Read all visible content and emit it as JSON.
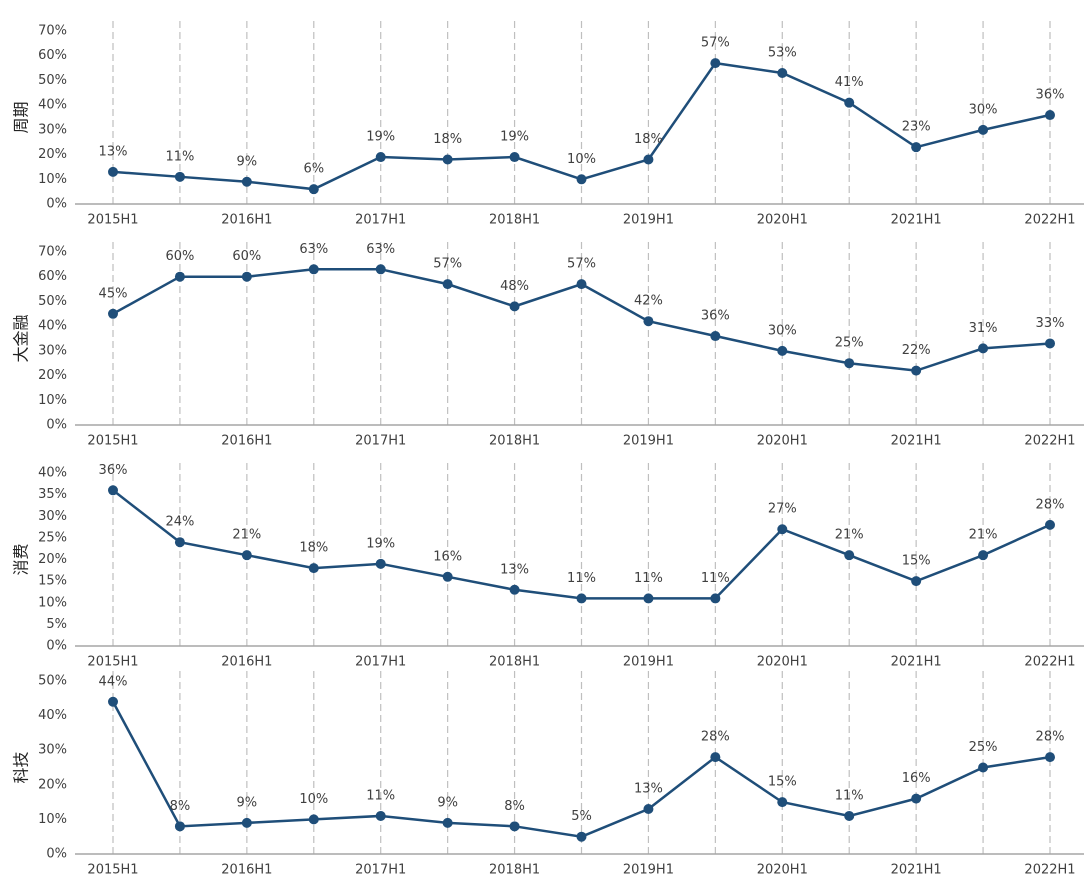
{
  "chart_data": [
    {
      "type": "line",
      "ylabel": "周期",
      "color": "#1f4e79",
      "xgrid": true,
      "categories": [
        "2015H1",
        null,
        "2016H1",
        null,
        "2017H1",
        null,
        "2018H1",
        null,
        "2019H1",
        null,
        "2020H1",
        null,
        "2021H1",
        null,
        "2022H1"
      ],
      "values": [
        13,
        11,
        9,
        6,
        19,
        18,
        19,
        10,
        18,
        57,
        53,
        41,
        23,
        30,
        36
      ],
      "value_labels": [
        "13%",
        "11%",
        "9%",
        "6%",
        "19%",
        "18%",
        "19%",
        "10%",
        "18%",
        "57%",
        "53%",
        "41%",
        "23%",
        "30%",
        "36%"
      ],
      "ylim": [
        0,
        70
      ],
      "yticks": [
        {
          "value": 0,
          "label": "0%"
        },
        {
          "value": 10,
          "label": "10%"
        },
        {
          "value": 20,
          "label": "20%"
        },
        {
          "value": 30,
          "label": "30%"
        },
        {
          "value": 40,
          "label": "40%"
        },
        {
          "value": 50,
          "label": "50%"
        },
        {
          "value": 60,
          "label": "60%"
        },
        {
          "value": 70,
          "label": "70%"
        }
      ]
    },
    {
      "type": "line",
      "ylabel": "大金融",
      "color": "#1f4e79",
      "xgrid": true,
      "categories": [
        "2015H1",
        null,
        "2016H1",
        null,
        "2017H1",
        null,
        "2018H1",
        null,
        "2019H1",
        null,
        "2020H1",
        null,
        "2021H1",
        null,
        "2022H1"
      ],
      "values": [
        45,
        60,
        60,
        63,
        63,
        57,
        48,
        57,
        42,
        36,
        30,
        25,
        22,
        31,
        33
      ],
      "value_labels": [
        "45%",
        "60%",
        "60%",
        "63%",
        "63%",
        "57%",
        "48%",
        "57%",
        "42%",
        "36%",
        "30%",
        "25%",
        "22%",
        "31%",
        "33%"
      ],
      "ylim": [
        0,
        70
      ],
      "yticks": [
        {
          "value": 0,
          "label": "0%"
        },
        {
          "value": 10,
          "label": "10%"
        },
        {
          "value": 20,
          "label": "20%"
        },
        {
          "value": 30,
          "label": "30%"
        },
        {
          "value": 40,
          "label": "40%"
        },
        {
          "value": 50,
          "label": "50%"
        },
        {
          "value": 60,
          "label": "60%"
        },
        {
          "value": 70,
          "label": "70%"
        }
      ]
    },
    {
      "type": "line",
      "ylabel": "消费",
      "color": "#1f4e79",
      "xgrid": true,
      "categories": [
        "2015H1",
        null,
        "2016H1",
        null,
        "2017H1",
        null,
        "2018H1",
        null,
        "2019H1",
        null,
        "2020H1",
        null,
        "2021H1",
        null,
        "2022H1"
      ],
      "values": [
        36,
        24,
        21,
        18,
        19,
        16,
        13,
        11,
        11,
        11,
        27,
        21,
        15,
        21,
        28
      ],
      "value_labels": [
        "36%",
        "24%",
        "21%",
        "18%",
        "19%",
        "16%",
        "13%",
        "11%",
        "11%",
        "11%",
        "27%",
        "21%",
        "15%",
        "21%",
        "28%"
      ],
      "ylim": [
        0,
        40
      ],
      "yticks": [
        {
          "value": 0,
          "label": "0%"
        },
        {
          "value": 5,
          "label": "5%"
        },
        {
          "value": 10,
          "label": "10%"
        },
        {
          "value": 15,
          "label": "15%"
        },
        {
          "value": 20,
          "label": "20%"
        },
        {
          "value": 25,
          "label": "25%"
        },
        {
          "value": 30,
          "label": "30%"
        },
        {
          "value": 35,
          "label": "35%"
        },
        {
          "value": 40,
          "label": "40%"
        }
      ]
    },
    {
      "type": "line",
      "ylabel": "科技",
      "color": "#1f4e79",
      "xgrid": true,
      "categories": [
        "2015H1",
        null,
        "2016H1",
        null,
        "2017H1",
        null,
        "2018H1",
        null,
        "2019H1",
        null,
        "2020H1",
        null,
        "2021H1",
        null,
        "2022H1"
      ],
      "values": [
        44,
        8,
        9,
        10,
        11,
        9,
        8,
        5,
        13,
        28,
        15,
        11,
        16,
        25,
        28
      ],
      "value_labels": [
        "44%",
        "8%",
        "9%",
        "10%",
        "11%",
        "9%",
        "8%",
        "5%",
        "13%",
        "28%",
        "15%",
        "11%",
        "16%",
        "25%",
        "28%"
      ],
      "ylim": [
        0,
        50
      ],
      "yticks": [
        {
          "value": 0,
          "label": "0%"
        },
        {
          "value": 10,
          "label": "10%"
        },
        {
          "value": 20,
          "label": "20%"
        },
        {
          "value": 30,
          "label": "30%"
        },
        {
          "value": 40,
          "label": "40%"
        },
        {
          "value": 50,
          "label": "50%"
        }
      ]
    }
  ]
}
